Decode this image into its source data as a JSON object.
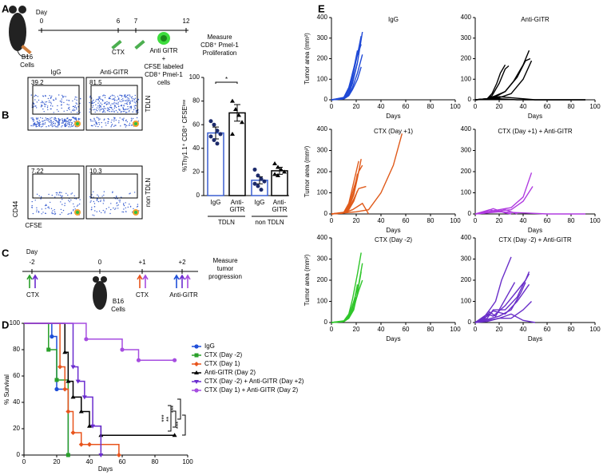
{
  "panel_labels": [
    "A",
    "B",
    "C",
    "D",
    "E"
  ],
  "panel_a": {
    "day_label": "Day",
    "days": [
      0,
      6,
      7,
      12
    ],
    "b16": [
      "B16",
      "Cells"
    ],
    "ctx": "CTX",
    "anti": [
      "Anti GITR",
      "+",
      "CFSE labeled",
      "CD8⁺ Pmel-1",
      "cells"
    ],
    "measure": [
      "Measure",
      "CD8⁺ Pmel-1",
      "Proliferation"
    ]
  },
  "panel_b": {
    "flow": {
      "columns": [
        "IgG",
        "Anti-GITR"
      ],
      "rows": [
        "TDLN",
        "non TDLN"
      ],
      "gates": [
        39.2,
        81.5,
        7.22,
        10.3
      ],
      "ylabel": "CD44",
      "xlabel": "CFSE"
    },
    "bar_chart": {
      "type": "bar",
      "ylabel": "%Thy1.1⁺ CD8⁺ CFSEˡᵒʷ",
      "ylim": [
        0,
        100
      ],
      "yticks": [
        0,
        20,
        40,
        60,
        80,
        100
      ],
      "categories": [
        "IgG",
        "Anti-GITR",
        "IgG",
        "Anti-GITR"
      ],
      "groups": [
        "TDLN",
        "non TDLN"
      ],
      "values": [
        53,
        70,
        13,
        21
      ],
      "errors": [
        5,
        7,
        3,
        3
      ],
      "colors": [
        "#3a5fd0",
        "#000000",
        "#3a5fd0",
        "#000000"
      ],
      "points": [
        [
          63,
          60,
          55,
          52,
          50,
          47,
          44
        ],
        [
          80,
          73,
          68,
          62,
          52
        ],
        [
          22,
          17,
          14,
          12,
          10,
          8,
          5
        ],
        [
          27,
          24,
          22,
          20,
          18,
          17
        ]
      ],
      "significance": "*"
    }
  },
  "panel_c": {
    "day_label": "Day",
    "days": [
      {
        "value": -2,
        "label": "-2"
      },
      0,
      {
        "value": 1,
        "label": "+1"
      },
      {
        "value": 2,
        "label": "+2"
      }
    ],
    "ctx": "CTX",
    "ctx2": "CTX",
    "anti": "Anti-GITR",
    "b16": [
      "B16",
      "Cells"
    ],
    "measure": [
      "Measure",
      "tumor",
      "progression"
    ]
  },
  "survival": {
    "type": "step",
    "xlabel": "Days",
    "ylabel": "% Survival",
    "xlim": [
      0,
      100
    ],
    "xticks": [
      0,
      20,
      40,
      60,
      80,
      100
    ],
    "ylim": [
      0,
      100
    ],
    "yticks": [
      0,
      20,
      40,
      60,
      80,
      100
    ],
    "series": [
      {
        "name": "IgG",
        "color": "#1f4fd8",
        "marker": "circle",
        "x": [
          0,
          17,
          20,
          27
        ],
        "values": [
          100,
          90,
          50,
          0
        ]
      },
      {
        "name": "CTX (Day -2)",
        "color": "#2aa02a",
        "marker": "square",
        "x": [
          0,
          15,
          20,
          27
        ],
        "values": [
          100,
          80,
          57,
          0
        ]
      },
      {
        "name": "CTX (Day 1)",
        "color": "#e8541c",
        "marker": "diamond",
        "x": [
          0,
          22,
          25,
          27,
          30,
          35,
          40,
          58
        ],
        "values": [
          100,
          67,
          50,
          33,
          17,
          8,
          8,
          0
        ]
      },
      {
        "name": "Anti-GITR (Day 2)",
        "color": "#000000",
        "marker": "triangle",
        "x": [
          0,
          25,
          27,
          30,
          35,
          40,
          47,
          92
        ],
        "values": [
          100,
          78,
          56,
          44,
          33,
          22,
          15,
          15
        ]
      },
      {
        "name": "CTX (Day -2) + Anti-GITR (Day +2)",
        "color": "#6a2ccf",
        "marker": "triangle-down",
        "x": [
          0,
          30,
          33,
          37,
          42,
          47
        ],
        "values": [
          100,
          67,
          56,
          44,
          22,
          0
        ]
      },
      {
        "name": "CTX (Day 1) + Anti-GITR (Day 2)",
        "color": "#a64de0",
        "marker": "circle",
        "x": [
          0,
          38,
          60,
          70,
          92
        ],
        "values": [
          100,
          88,
          80,
          72,
          72
        ]
      }
    ],
    "significance": [
      "***",
      "**",
      "***",
      "***"
    ]
  },
  "tumor_growth": [
    {
      "type": "line",
      "title": "IgG",
      "ylabel": "Tumor area (mm²)",
      "xlabel": "Days",
      "xlim": [
        0,
        100
      ],
      "xticks": [
        0,
        20,
        40,
        60,
        80,
        100
      ],
      "ylim": [
        0,
        400
      ],
      "yticks": [
        0,
        100,
        200,
        300,
        400
      ],
      "color": "#1f49d6",
      "series": [
        {
          "x": [
            0,
            10,
            14,
            17,
            21,
            25
          ],
          "values": [
            0,
            5,
            30,
            80,
            180,
            330
          ]
        },
        {
          "x": [
            0,
            10,
            14,
            17,
            21,
            24
          ],
          "values": [
            0,
            8,
            40,
            110,
            220,
            310
          ]
        },
        {
          "x": [
            0,
            10,
            14,
            17,
            20,
            24
          ],
          "values": [
            0,
            10,
            50,
            130,
            200,
            270
          ]
        },
        {
          "x": [
            0,
            10,
            14,
            17,
            21
          ],
          "values": [
            0,
            5,
            30,
            90,
            180
          ]
        },
        {
          "x": [
            0,
            10,
            14,
            17,
            21,
            25
          ],
          "values": [
            0,
            6,
            25,
            60,
            130,
            220
          ]
        },
        {
          "x": [
            0,
            10,
            14,
            18,
            21
          ],
          "values": [
            0,
            12,
            60,
            150,
            240
          ]
        },
        {
          "x": [
            0,
            10,
            14,
            17,
            21,
            24
          ],
          "values": [
            0,
            4,
            20,
            50,
            100,
            160
          ]
        }
      ]
    },
    {
      "type": "line",
      "title": "Anti-GITR",
      "xlabel": "Days",
      "xlim": [
        0,
        100
      ],
      "xticks": [
        0,
        20,
        40,
        60,
        80,
        100
      ],
      "ylim": [
        0,
        400
      ],
      "yticks": [
        0,
        100,
        200,
        300,
        400
      ],
      "color": "#000000",
      "series": [
        {
          "x": [
            0,
            10,
            14,
            18,
            21,
            25
          ],
          "values": [
            0,
            5,
            30,
            80,
            130,
            170
          ]
        },
        {
          "x": [
            0,
            10,
            14,
            20,
            25,
            28
          ],
          "values": [
            0,
            5,
            20,
            80,
            150,
            165
          ]
        },
        {
          "x": [
            0,
            10,
            17,
            25,
            32,
            40,
            45
          ],
          "values": [
            0,
            5,
            20,
            40,
            90,
            170,
            240
          ]
        },
        {
          "x": [
            0,
            10,
            17,
            25,
            35,
            42,
            46
          ],
          "values": [
            0,
            3,
            15,
            40,
            110,
            190,
            200
          ]
        },
        {
          "x": [
            0,
            10,
            20,
            30,
            40,
            47
          ],
          "values": [
            0,
            3,
            10,
            30,
            100,
            190
          ]
        },
        {
          "x": [
            0,
            10,
            20,
            30,
            40,
            50,
            70,
            92
          ],
          "values": [
            0,
            5,
            15,
            10,
            5,
            0,
            0,
            0
          ]
        },
        {
          "x": [
            0,
            10,
            20,
            35,
            92
          ],
          "values": [
            0,
            3,
            5,
            0,
            0
          ]
        }
      ]
    },
    {
      "type": "line",
      "title": "CTX (Day +1)",
      "ylabel": "Tumor area (mm²)",
      "xlabel": "Days",
      "xlim": [
        0,
        100
      ],
      "xticks": [
        0,
        20,
        40,
        60,
        80,
        100
      ],
      "ylim": [
        0,
        400
      ],
      "yticks": [
        0,
        100,
        200,
        300,
        400
      ],
      "color": "#e05a1a",
      "series": [
        {
          "x": [
            0,
            10,
            14,
            18,
            21
          ],
          "values": [
            0,
            5,
            30,
            100,
            190
          ]
        },
        {
          "x": [
            0,
            10,
            14,
            18,
            22
          ],
          "values": [
            0,
            8,
            50,
            150,
            250
          ]
        },
        {
          "x": [
            0,
            10,
            14,
            18,
            21,
            24
          ],
          "values": [
            0,
            5,
            30,
            90,
            170,
            260
          ]
        },
        {
          "x": [
            0,
            10,
            14,
            18,
            22,
            25
          ],
          "values": [
            0,
            6,
            40,
            120,
            200,
            230
          ]
        },
        {
          "x": [
            0,
            10,
            14,
            18,
            21
          ],
          "values": [
            0,
            4,
            20,
            60,
            110
          ]
        },
        {
          "x": [
            0,
            10,
            14,
            18,
            22,
            28
          ],
          "values": [
            0,
            5,
            25,
            70,
            120,
            130
          ]
        },
        {
          "x": [
            0,
            20,
            30,
            40,
            50,
            57
          ],
          "values": [
            0,
            10,
            20,
            100,
            230,
            380
          ]
        },
        {
          "x": [
            0,
            10,
            17,
            25,
            30
          ],
          "values": [
            0,
            5,
            20,
            50,
            0
          ]
        }
      ]
    },
    {
      "type": "line",
      "title": "CTX (Day +1) + Anti-GITR",
      "xlabel": "Days",
      "xlim": [
        0,
        100
      ],
      "xticks": [
        0,
        20,
        40,
        60,
        80,
        100
      ],
      "ylim": [
        0,
        400
      ],
      "yticks": [
        0,
        100,
        200,
        300,
        400
      ],
      "color": "#b03be0",
      "series": [
        {
          "x": [
            0,
            10,
            20,
            30,
            40,
            47
          ],
          "values": [
            0,
            10,
            20,
            30,
            80,
            195
          ]
        },
        {
          "x": [
            0,
            10,
            20,
            30,
            40,
            48
          ],
          "values": [
            0,
            5,
            15,
            20,
            60,
            130
          ]
        },
        {
          "x": [
            0,
            10,
            15,
            20,
            25,
            30
          ],
          "values": [
            0,
            15,
            25,
            15,
            5,
            0
          ]
        },
        {
          "x": [
            0,
            10,
            20,
            40,
            60,
            92
          ],
          "values": [
            0,
            5,
            10,
            5,
            0,
            0
          ]
        },
        {
          "x": [
            0,
            12,
            18,
            25,
            35
          ],
          "values": [
            0,
            20,
            10,
            20,
            0
          ]
        }
      ]
    },
    {
      "type": "line",
      "title": "CTX (Day -2)",
      "ylabel": "Tumor area (mm²)",
      "xlabel": "Days",
      "xlim": [
        0,
        100
      ],
      "xticks": [
        0,
        20,
        40,
        60,
        80,
        100
      ],
      "ylim": [
        0,
        400
      ],
      "yticks": [
        0,
        100,
        200,
        300,
        400
      ],
      "color": "#2fc62a",
      "series": [
        {
          "x": [
            0,
            10,
            14,
            17,
            21,
            24
          ],
          "values": [
            0,
            8,
            40,
            110,
            230,
            330
          ]
        },
        {
          "x": [
            0,
            10,
            14,
            18,
            21
          ],
          "values": [
            0,
            5,
            30,
            90,
            180
          ]
        },
        {
          "x": [
            0,
            10,
            14,
            18,
            22,
            25
          ],
          "values": [
            0,
            6,
            30,
            100,
            180,
            280
          ]
        },
        {
          "x": [
            0,
            10,
            14,
            18,
            21,
            24
          ],
          "values": [
            0,
            4,
            20,
            60,
            140,
            240
          ]
        },
        {
          "x": [
            0,
            10,
            14,
            17,
            20
          ],
          "values": [
            0,
            6,
            30,
            70,
            120
          ]
        },
        {
          "x": [
            0,
            10,
            14,
            18,
            22,
            25
          ],
          "values": [
            0,
            5,
            25,
            70,
            150,
            200
          ]
        }
      ]
    },
    {
      "type": "line",
      "title": "CTX (Day -2) + Anti-GITR",
      "xlabel": "Days",
      "xlim": [
        0,
        100
      ],
      "xticks": [
        0,
        20,
        40,
        60,
        80,
        100
      ],
      "ylim": [
        0,
        400
      ],
      "yticks": [
        0,
        100,
        200,
        300,
        400
      ],
      "color": "#6a2fc9",
      "series": [
        {
          "x": [
            0,
            8,
            12,
            17,
            22,
            30
          ],
          "values": [
            0,
            30,
            60,
            100,
            200,
            310
          ]
        },
        {
          "x": [
            0,
            8,
            12,
            17,
            25,
            33
          ],
          "values": [
            0,
            20,
            50,
            30,
            110,
            190
          ]
        },
        {
          "x": [
            0,
            10,
            15,
            25,
            35,
            42,
            45
          ],
          "values": [
            0,
            40,
            30,
            80,
            150,
            200,
            240
          ]
        },
        {
          "x": [
            0,
            10,
            15,
            25,
            35,
            40,
            45
          ],
          "values": [
            0,
            20,
            60,
            60,
            120,
            180,
            230
          ]
        },
        {
          "x": [
            0,
            10,
            20,
            30,
            38,
            42
          ],
          "values": [
            0,
            15,
            30,
            60,
            140,
            190
          ]
        },
        {
          "x": [
            0,
            10,
            15,
            25,
            35,
            45
          ],
          "values": [
            0,
            30,
            55,
            40,
            100,
            180
          ]
        },
        {
          "x": [
            0,
            10,
            20,
            30,
            40,
            47
          ],
          "values": [
            0,
            10,
            20,
            20,
            60,
            100
          ]
        },
        {
          "x": [
            0,
            10,
            20,
            30,
            40,
            50
          ],
          "values": [
            0,
            5,
            20,
            40,
            10,
            0
          ]
        }
      ]
    }
  ]
}
